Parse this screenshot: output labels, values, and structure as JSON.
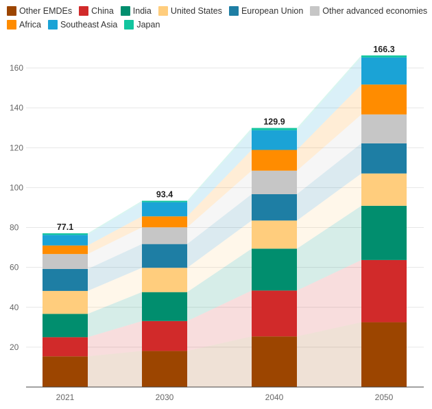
{
  "chart_data": {
    "type": "bar",
    "stacked": true,
    "categories": [
      "2021",
      "2030",
      "2040",
      "2050"
    ],
    "ylim": [
      0,
      170
    ],
    "yticks": [
      20,
      40,
      60,
      80,
      100,
      120,
      140,
      160
    ],
    "grid": true,
    "legend_position": "top",
    "totals": [
      "77.1",
      "93.4",
      "129.9",
      "166.3"
    ],
    "series": [
      {
        "name": "Other EMDEs",
        "color": "#9C4500",
        "values": [
          15.4,
          18.1,
          25.4,
          32.5
        ]
      },
      {
        "name": "China",
        "color": "#D12A2A",
        "values": [
          9.6,
          15.0,
          23.0,
          31.2
        ]
      },
      {
        "name": "India",
        "color": "#018E6E",
        "values": [
          11.7,
          14.5,
          21.0,
          27.2
        ]
      },
      {
        "name": "United States",
        "color": "#FFCD7D",
        "values": [
          11.5,
          12.2,
          14.1,
          16.2
        ]
      },
      {
        "name": "European Union",
        "color": "#1E7EA4",
        "values": [
          11.0,
          11.9,
          13.2,
          15.1
        ]
      },
      {
        "name": "Other advanced economies",
        "color": "#C6C6C6",
        "values": [
          7.5,
          8.4,
          11.8,
          14.5
        ]
      },
      {
        "name": "Africa",
        "color": "#FF8C00",
        "values": [
          4.3,
          5.5,
          10.4,
          15.0
        ]
      },
      {
        "name": "Southeast Asia",
        "color": "#1BA3D6",
        "values": [
          5.3,
          7.1,
          9.9,
          13.6
        ]
      },
      {
        "name": "Japan",
        "color": "#12C59F",
        "values": [
          0.8,
          0.7,
          1.1,
          1.0
        ]
      }
    ]
  }
}
